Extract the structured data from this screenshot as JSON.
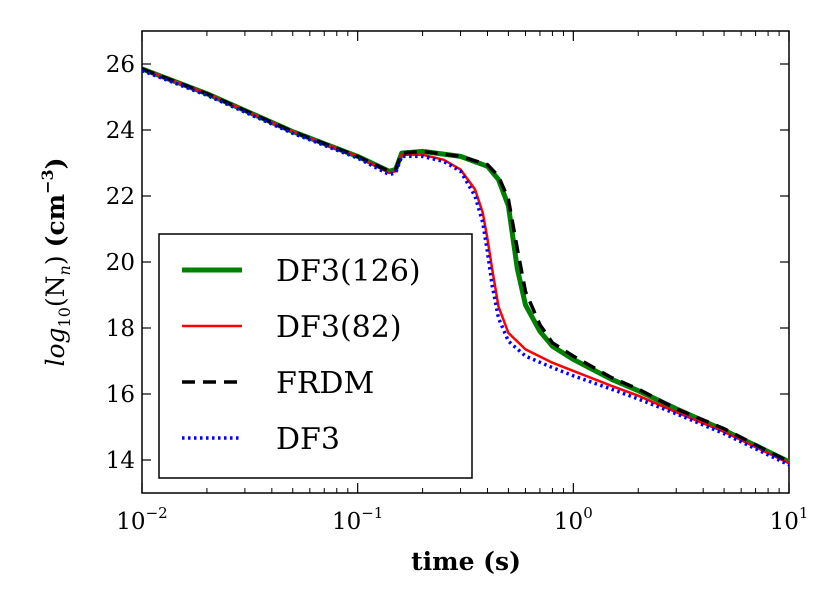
{
  "chart_data": {
    "type": "line",
    "title": "",
    "xlabel": "time (s)",
    "ylabel": {
      "prefix": "log",
      "prefix_sub": "10",
      "var": "(N",
      "var_sub": "n",
      "close": ")",
      "unit": "(cm",
      "unit_sup": "−3",
      "unit_close": ")"
    },
    "xscale": "log",
    "xlim": [
      0.01,
      10
    ],
    "ylim": [
      13,
      27
    ],
    "xticks": [
      {
        "value": 0.01,
        "base": "10",
        "exp": "−2"
      },
      {
        "value": 0.1,
        "base": "10",
        "exp": "−1"
      },
      {
        "value": 1,
        "base": "10",
        "exp": "0"
      },
      {
        "value": 10,
        "base": "10",
        "exp": "1"
      }
    ],
    "yticks": [
      14,
      16,
      18,
      20,
      22,
      24,
      26
    ],
    "legend_position": "lower-left",
    "series": [
      {
        "name": "DF3(126)",
        "color": "#008000",
        "width": 5,
        "dash": "",
        "points": [
          [
            0.01,
            25.85
          ],
          [
            0.02,
            25.1
          ],
          [
            0.05,
            23.95
          ],
          [
            0.1,
            23.2
          ],
          [
            0.14,
            22.75
          ],
          [
            0.15,
            22.8
          ],
          [
            0.16,
            23.3
          ],
          [
            0.2,
            23.35
          ],
          [
            0.3,
            23.2
          ],
          [
            0.4,
            22.9
          ],
          [
            0.45,
            22.5
          ],
          [
            0.5,
            21.7
          ],
          [
            0.55,
            19.8
          ],
          [
            0.6,
            18.7
          ],
          [
            0.7,
            17.9
          ],
          [
            0.8,
            17.45
          ],
          [
            1.0,
            17.05
          ],
          [
            1.5,
            16.45
          ],
          [
            2.0,
            16.1
          ],
          [
            3.0,
            15.55
          ],
          [
            5.0,
            14.9
          ],
          [
            10.0,
            13.95
          ]
        ]
      },
      {
        "name": "DF3(82)",
        "color": "#ff0000",
        "width": 2.5,
        "dash": "",
        "points": [
          [
            0.01,
            25.85
          ],
          [
            0.02,
            25.1
          ],
          [
            0.05,
            23.95
          ],
          [
            0.1,
            23.2
          ],
          [
            0.14,
            22.7
          ],
          [
            0.15,
            22.75
          ],
          [
            0.16,
            23.25
          ],
          [
            0.2,
            23.25
          ],
          [
            0.25,
            23.1
          ],
          [
            0.3,
            22.8
          ],
          [
            0.35,
            22.2
          ],
          [
            0.38,
            21.5
          ],
          [
            0.4,
            20.7
          ],
          [
            0.42,
            19.8
          ],
          [
            0.45,
            18.65
          ],
          [
            0.5,
            17.85
          ],
          [
            0.6,
            17.35
          ],
          [
            0.8,
            16.95
          ],
          [
            1.0,
            16.7
          ],
          [
            1.5,
            16.25
          ],
          [
            2.0,
            15.95
          ],
          [
            3.0,
            15.45
          ],
          [
            5.0,
            14.85
          ],
          [
            10.0,
            13.9
          ]
        ]
      },
      {
        "name": "FRDM",
        "color": "#000000",
        "width": 3.5,
        "dash": "13,8",
        "points": [
          [
            0.01,
            25.85
          ],
          [
            0.02,
            25.1
          ],
          [
            0.05,
            23.95
          ],
          [
            0.1,
            23.2
          ],
          [
            0.14,
            22.75
          ],
          [
            0.15,
            22.8
          ],
          [
            0.16,
            23.3
          ],
          [
            0.2,
            23.35
          ],
          [
            0.3,
            23.2
          ],
          [
            0.4,
            22.95
          ],
          [
            0.45,
            22.6
          ],
          [
            0.5,
            21.9
          ],
          [
            0.55,
            20.4
          ],
          [
            0.6,
            19.1
          ],
          [
            0.7,
            18.1
          ],
          [
            0.8,
            17.55
          ],
          [
            1.0,
            17.15
          ],
          [
            1.5,
            16.5
          ],
          [
            2.0,
            16.15
          ],
          [
            3.0,
            15.55
          ],
          [
            5.0,
            14.95
          ],
          [
            10.0,
            13.95
          ]
        ]
      },
      {
        "name": "DF3",
        "color": "#0000ff",
        "width": 3.5,
        "dash": "2.5,3.5",
        "points": [
          [
            0.01,
            25.8
          ],
          [
            0.02,
            25.05
          ],
          [
            0.05,
            23.9
          ],
          [
            0.1,
            23.15
          ],
          [
            0.14,
            22.65
          ],
          [
            0.15,
            22.7
          ],
          [
            0.16,
            23.2
          ],
          [
            0.2,
            23.2
          ],
          [
            0.25,
            23.05
          ],
          [
            0.3,
            22.75
          ],
          [
            0.35,
            22.0
          ],
          [
            0.38,
            21.2
          ],
          [
            0.4,
            20.3
          ],
          [
            0.42,
            19.3
          ],
          [
            0.45,
            18.3
          ],
          [
            0.5,
            17.6
          ],
          [
            0.6,
            17.15
          ],
          [
            0.8,
            16.8
          ],
          [
            1.0,
            16.55
          ],
          [
            1.5,
            16.15
          ],
          [
            2.0,
            15.85
          ],
          [
            3.0,
            15.4
          ],
          [
            5.0,
            14.8
          ],
          [
            10.0,
            13.85
          ]
        ]
      }
    ]
  }
}
